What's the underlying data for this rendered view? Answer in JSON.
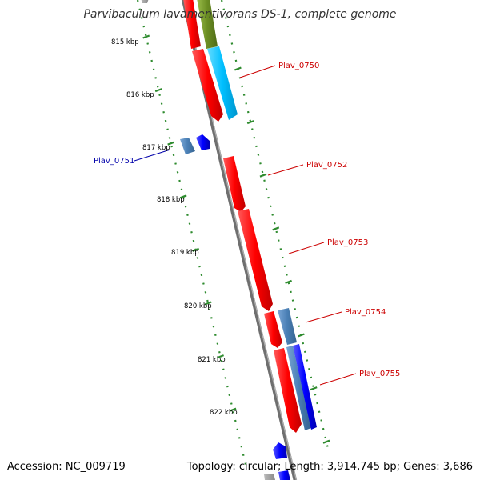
{
  "title": "Parvibaculum lavamentivorans DS-1, complete genome",
  "footer": {
    "accession": "Accession: NC_009719",
    "summary": "Topology: circular; Length: 3,914,745 bp; Genes: 3,686"
  },
  "ticks": [
    {
      "kbp": 815,
      "label": "815 kbp"
    },
    {
      "kbp": 816,
      "label": "816 kbp"
    },
    {
      "kbp": 817,
      "label": "817 kbp"
    },
    {
      "kbp": 818,
      "label": "818 kbp"
    },
    {
      "kbp": 819,
      "label": "819 kbp"
    },
    {
      "kbp": 820,
      "label": "820 kbp"
    },
    {
      "kbp": 821,
      "label": "821 kbp"
    },
    {
      "kbp": 822,
      "label": "822 kbp"
    }
  ],
  "gene_labels": [
    {
      "name": "Plav_0750",
      "strand": "forward",
      "color": "#cc0000"
    },
    {
      "name": "Plav_0751",
      "strand": "reverse",
      "color": "#0000aa"
    },
    {
      "name": "Plav_0752",
      "strand": "forward",
      "color": "#cc0000"
    },
    {
      "name": "Plav_0753",
      "strand": "forward",
      "color": "#cc0000"
    },
    {
      "name": "Plav_0754",
      "strand": "forward",
      "color": "#cc0000"
    },
    {
      "name": "Plav_0755",
      "strand": "forward",
      "color": "#cc0000"
    }
  ],
  "colors": {
    "cds_forward": "#ff0000",
    "cds_reverse": "#0000ff",
    "feature_steel": "#4a7fb5",
    "feature_cyan": "#00bfff",
    "feature_olive": "#6b8e23",
    "tick_marks": "#2e8b2e",
    "backbone": "#8a8a8a"
  }
}
